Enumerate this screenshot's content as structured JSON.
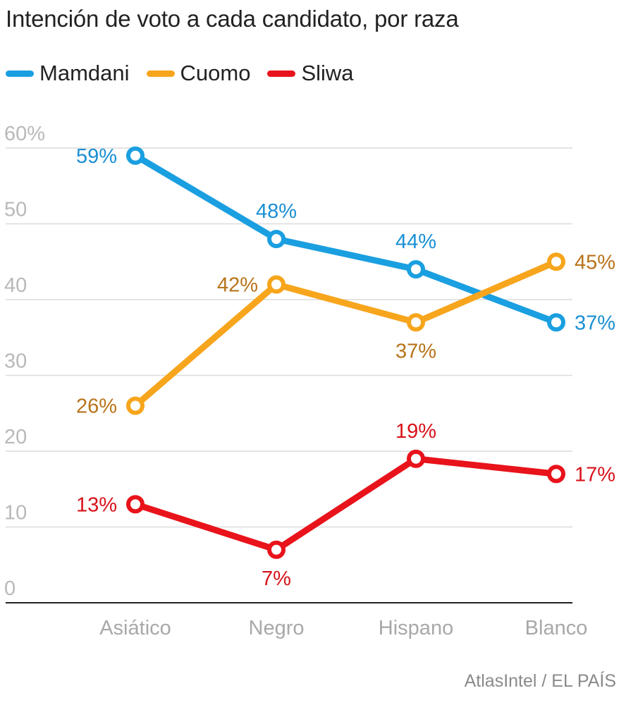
{
  "chart_data": {
    "type": "line",
    "title": "Intención de voto a cada candidato, por raza",
    "categories": [
      "Asiático",
      "Negro",
      "Hispano",
      "Blanco"
    ],
    "y_ticks": [
      "60%",
      "50",
      "40",
      "30",
      "20",
      "10",
      "0"
    ],
    "ylim": [
      0,
      60
    ],
    "series": [
      {
        "name": "Mamdani",
        "color": "#1a9fe0",
        "label_color": "#1a8fd4",
        "values": [
          59,
          48,
          44,
          37
        ],
        "labels": [
          "59%",
          "48%",
          "44%",
          "37%"
        ],
        "label_pos": [
          "left",
          "above",
          "above",
          "right"
        ]
      },
      {
        "name": "Cuomo",
        "color": "#f7a51c",
        "label_color": "#b8731a",
        "values": [
          26,
          42,
          37,
          45
        ],
        "labels": [
          "26%",
          "42%",
          "37%",
          "45%"
        ],
        "label_pos": [
          "left",
          "left",
          "below",
          "right"
        ]
      },
      {
        "name": "Sliwa",
        "color": "#e8131b",
        "label_color": "#d8121a",
        "values": [
          13,
          7,
          19,
          17
        ],
        "labels": [
          "13%",
          "7%",
          "19%",
          "17%"
        ],
        "label_pos": [
          "left",
          "below",
          "above",
          "right"
        ]
      }
    ],
    "source": "AtlasIntel / EL PAÍS"
  }
}
